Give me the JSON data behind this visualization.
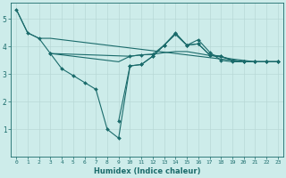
{
  "xlabel": "Humidex (Indice chaleur)",
  "ylabel": "",
  "background_color": "#cdecea",
  "grid_color": "#b8d8d6",
  "line_color": "#1a6b6b",
  "xlim": [
    -0.5,
    23.5
  ],
  "ylim": [
    0,
    5.6
  ],
  "yticks": [
    1,
    2,
    3,
    4,
    5
  ],
  "xticks": [
    0,
    1,
    2,
    3,
    4,
    5,
    6,
    7,
    8,
    9,
    10,
    11,
    12,
    13,
    14,
    15,
    16,
    17,
    18,
    19,
    20,
    21,
    22,
    23
  ],
  "line1_x": [
    0,
    1,
    2,
    3,
    4,
    5,
    6,
    7,
    8,
    9,
    10,
    11,
    12,
    13,
    14,
    15,
    16,
    17,
    18,
    19,
    20,
    21,
    22,
    23
  ],
  "line1_y": [
    5.35,
    4.5,
    4.3,
    3.75,
    3.2,
    2.95,
    2.7,
    2.45,
    1.0,
    0.68,
    3.3,
    3.35,
    3.65,
    4.05,
    4.5,
    4.05,
    4.25,
    3.8,
    3.5,
    3.45,
    3.45,
    3.45,
    3.45,
    3.45
  ],
  "line2_x": [
    3,
    4,
    5,
    6,
    7,
    8,
    9,
    10,
    11,
    12,
    13,
    14,
    15,
    16,
    17,
    18,
    19,
    20,
    21,
    22,
    23
  ],
  "line2_y": [
    3.75,
    3.7,
    3.65,
    3.6,
    3.55,
    3.5,
    3.45,
    3.65,
    3.7,
    3.72,
    3.78,
    3.82,
    3.82,
    3.75,
    3.68,
    3.62,
    3.55,
    3.5,
    3.45,
    3.45,
    3.45
  ],
  "line3_x": [
    0,
    1,
    2,
    3,
    4,
    5,
    6,
    7,
    8,
    9,
    10,
    11,
    12,
    13,
    14,
    15,
    16,
    17,
    18,
    19,
    20,
    21,
    22,
    23
  ],
  "line3_y": [
    5.35,
    4.5,
    4.3,
    4.3,
    4.25,
    4.2,
    4.15,
    4.1,
    4.05,
    4.0,
    3.95,
    3.9,
    3.85,
    3.8,
    3.75,
    3.7,
    3.65,
    3.6,
    3.55,
    3.5,
    3.45,
    3.45,
    3.45,
    3.45
  ],
  "line4_x": [
    3,
    10,
    11,
    12,
    13,
    14,
    15,
    16,
    17,
    18,
    19,
    20,
    21,
    22,
    23
  ],
  "line4_y": [
    3.75,
    3.65,
    3.7,
    3.72,
    4.05,
    4.45,
    4.05,
    4.1,
    3.7,
    3.65,
    3.5,
    3.45,
    3.45,
    3.45,
    3.45
  ],
  "line5_x": [
    9,
    10,
    11,
    12,
    13,
    14,
    15,
    16,
    17,
    18,
    19,
    20,
    21,
    22,
    23
  ],
  "line5_y": [
    1.3,
    3.3,
    3.35,
    3.65,
    4.05,
    4.45,
    4.05,
    4.1,
    3.7,
    3.65,
    3.5,
    3.45,
    3.45,
    3.45,
    3.45
  ]
}
